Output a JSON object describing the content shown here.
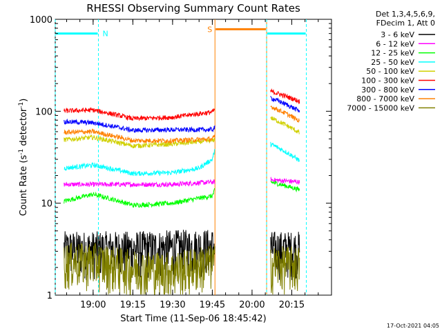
{
  "chart_data": {
    "type": "line",
    "title": "RHESSI Observing Summary Count Rates",
    "xlabel": "Start Time (11-Sep-06 18:45:42)",
    "ylabel_main": "Count Rate (s",
    "ylabel_sup1": "-1",
    "ylabel_mid": " detector",
    "ylabel_sup2": "-1",
    "ylabel_end": ")",
    "y_scale": "log",
    "ylim": [
      1,
      1000
    ],
    "y_ticks": [
      "1",
      "10",
      "100",
      "1000"
    ],
    "xlim": [
      "18:45:42",
      "20:30:00"
    ],
    "x_ticks": [
      {
        "t": "19:00:00",
        "label": "19:00"
      },
      {
        "t": "19:15:00",
        "label": "19:15"
      },
      {
        "t": "19:30:00",
        "label": "19:30"
      },
      {
        "t": "19:45:00",
        "label": "19:45"
      },
      {
        "t": "20:00:00",
        "label": "20:00"
      },
      {
        "t": "20:15:00",
        "label": "20:15"
      }
    ],
    "legend_header": [
      "Det 1,3,4,5,6,9,",
      "FDecim 1, Att 0"
    ],
    "legend_position": "right",
    "series": [
      {
        "name": "3 - 6 keV",
        "color": "#000000",
        "points": [
          [
            "18:49",
            3.2
          ],
          [
            "19:00",
            3.2
          ],
          [
            "19:15",
            3.2
          ],
          [
            "19:30",
            3.3
          ],
          [
            "19:45",
            3.4
          ],
          [
            "19:46",
            3.5
          ],
          [
            "20:07",
            3.2
          ],
          [
            "20:18",
            3.2
          ]
        ]
      },
      {
        "name": "6 - 12 keV",
        "color": "#ff00ff",
        "points": [
          [
            "18:49",
            16
          ],
          [
            "19:00",
            16
          ],
          [
            "19:15",
            16
          ],
          [
            "19:30",
            16
          ],
          [
            "19:45",
            17
          ],
          [
            "19:46",
            17
          ],
          [
            "20:07",
            18
          ],
          [
            "20:18",
            17
          ]
        ]
      },
      {
        "name": "12 - 25 keV",
        "color": "#00ff00",
        "points": [
          [
            "18:49",
            10.5
          ],
          [
            "19:00",
            12.5
          ],
          [
            "19:15",
            9.5
          ],
          [
            "19:30",
            10
          ],
          [
            "19:45",
            12
          ],
          [
            "19:46",
            14
          ],
          [
            "20:07",
            17
          ],
          [
            "20:18",
            14
          ]
        ]
      },
      {
        "name": "25 - 50 keV",
        "color": "#00ffff",
        "points": [
          [
            "18:49",
            24
          ],
          [
            "19:00",
            26
          ],
          [
            "19:15",
            21
          ],
          [
            "19:30",
            21.5
          ],
          [
            "19:40",
            24
          ],
          [
            "19:45",
            30
          ],
          [
            "19:46",
            38
          ],
          [
            "20:07",
            44
          ],
          [
            "20:18",
            29
          ]
        ]
      },
      {
        "name": "50 - 100 keV",
        "color": "#d0d000",
        "points": [
          [
            "18:49",
            49
          ],
          [
            "19:00",
            52
          ],
          [
            "19:15",
            42
          ],
          [
            "19:30",
            44
          ],
          [
            "19:45",
            48
          ],
          [
            "20:07",
            85
          ],
          [
            "20:18",
            58
          ]
        ]
      },
      {
        "name": "100 - 300 keV",
        "color": "#ff0000",
        "points": [
          [
            "18:49",
            101
          ],
          [
            "19:00",
            103
          ],
          [
            "19:15",
            83
          ],
          [
            "19:30",
            86
          ],
          [
            "19:45",
            98
          ],
          [
            "19:46",
            105
          ],
          [
            "20:07",
            165
          ],
          [
            "20:18",
            128
          ]
        ]
      },
      {
        "name": "300 - 800 keV",
        "color": "#0000ff",
        "points": [
          [
            "18:49",
            77
          ],
          [
            "19:00",
            75
          ],
          [
            "19:15",
            62
          ],
          [
            "19:30",
            63
          ],
          [
            "19:45",
            63
          ],
          [
            "20:07",
            140
          ],
          [
            "20:18",
            100
          ]
        ]
      },
      {
        "name": "800 - 7000 keV",
        "color": "#ff8000",
        "points": [
          [
            "18:49",
            59
          ],
          [
            "19:00",
            60
          ],
          [
            "19:15",
            48
          ],
          [
            "19:30",
            48
          ],
          [
            "19:45",
            50
          ],
          [
            "20:07",
            113
          ],
          [
            "20:18",
            78
          ]
        ]
      },
      {
        "name": "7000 - 15000 keV",
        "color": "#808000",
        "points": [
          [
            "18:49",
            2.4
          ],
          [
            "19:00",
            2.4
          ],
          [
            "19:15",
            2.0
          ],
          [
            "19:30",
            1.9
          ],
          [
            "19:45",
            2.3
          ],
          [
            "20:07",
            2.2
          ],
          [
            "20:18",
            2.2
          ]
        ]
      }
    ],
    "annotations": [
      {
        "label": "N",
        "kind": "night",
        "color": "#00ffff",
        "start": "18:45:42",
        "end": "19:02:00",
        "level": 700
      },
      {
        "label": "S",
        "kind": "saa",
        "color": "#ff8000",
        "start": "19:46:00",
        "end": "20:05:30",
        "level": 780
      },
      {
        "label": "",
        "kind": "night",
        "color": "#00ffff",
        "start": "20:05:30",
        "end": "20:20:30",
        "level": 700
      }
    ],
    "gaps": [
      [
        "19:46",
        "20:07"
      ]
    ],
    "grid": false
  },
  "footer_timestamp": "17-Oct-2021 04:05"
}
